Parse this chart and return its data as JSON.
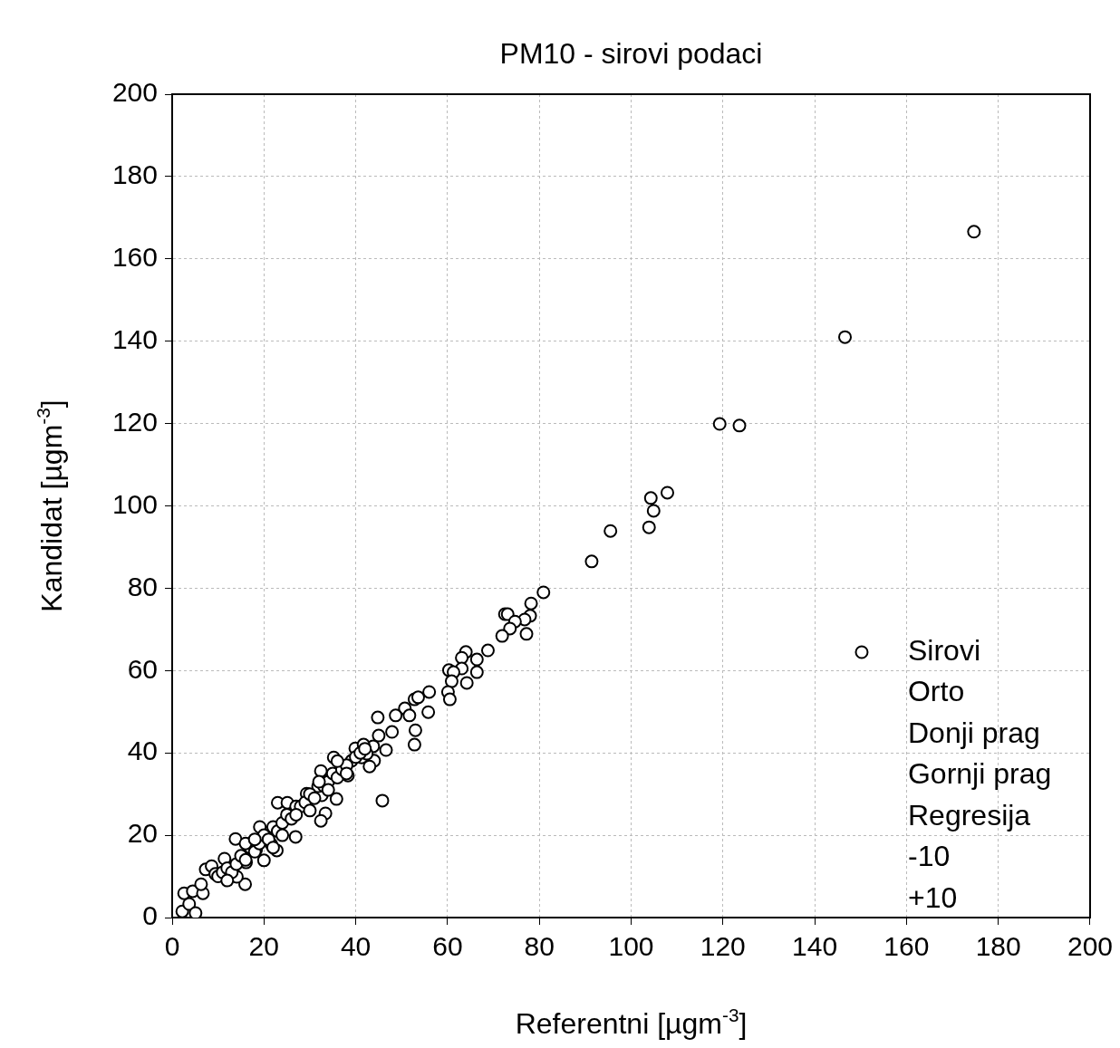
{
  "chart_data": {
    "type": "scatter",
    "title": "PM10 - sirovi podaci",
    "xlabel": "Referentni [µgm$^{-3}$]",
    "ylabel": "Kandidat [µgm$^{-3}$]",
    "xlim": [
      0,
      200
    ],
    "ylim": [
      0,
      200
    ],
    "xticks": [
      0,
      20,
      40,
      60,
      80,
      100,
      120,
      140,
      160,
      180,
      200
    ],
    "yticks": [
      0,
      20,
      40,
      60,
      80,
      100,
      120,
      140,
      160,
      180,
      200
    ],
    "grid": true,
    "legend": "bottom right",
    "marker": "circle",
    "annotations": [
      "Orto",
      "Donji prag",
      "Gornji prag",
      "Regresija",
      "-10",
      "+10"
    ],
    "series": [
      {
        "name": "Sirovi",
        "color": "#000000",
        "x": [
          174.7,
          146.6,
          119.3,
          123.6,
          107.9,
          104.3,
          104.9,
          103.9,
          95.5,
          91.4,
          80.9,
          78.2,
          72.5,
          73.1,
          78.0,
          76.8,
          74.7,
          73.6,
          77.2,
          71.9,
          68.8,
          64.0,
          63.1,
          66.4,
          60.3,
          63.1,
          61.3,
          66.4,
          60.9,
          64.2,
          60.1,
          60.5,
          56.0,
          52.8,
          53.6,
          50.7,
          55.8,
          51.7,
          48.7,
          53.0,
          52.8,
          44.8,
          47.9,
          45.0,
          43.8,
          46.6,
          44.0,
          45.8,
          2.2,
          3.7,
          5.1,
          2.6,
          4.5,
          6.7,
          6.3,
          7.3,
          8.6,
          9.4,
          11.4,
          13.8,
          15.9,
          14.1,
          16.1,
          18.3,
          19.1,
          20.0,
          21.6,
          23.0,
          22.8,
          25.1,
          26.9,
          29.3,
          32.6,
          31.8,
          32.4,
          35.8,
          33.4,
          32.4,
          35.2,
          38.3,
          39.1,
          39.9,
          41.3,
          42.4,
          41.7,
          43.0,
          10,
          11,
          12,
          13,
          14,
          15,
          16,
          17,
          18,
          19,
          20,
          21,
          22,
          23,
          24,
          25,
          26,
          27,
          28,
          29,
          30,
          31,
          33,
          34,
          35,
          36,
          37,
          38,
          40,
          41,
          42,
          12,
          16,
          18,
          22,
          24,
          27,
          30,
          32,
          34,
          36,
          38
        ],
        "values": [
          166.6,
          141.0,
          119.9,
          119.5,
          103.2,
          101.9,
          98.8,
          94.8,
          93.9,
          86.5,
          79.0,
          76.3,
          73.7,
          73.7,
          73.3,
          72.4,
          71.9,
          70.2,
          68.9,
          68.4,
          64.9,
          64.5,
          63.1,
          62.7,
          60.1,
          60.5,
          59.6,
          59.6,
          57.4,
          57.0,
          54.8,
          53.0,
          54.8,
          53.0,
          53.5,
          50.8,
          49.9,
          49.1,
          49.1,
          45.5,
          42.0,
          48.6,
          45.1,
          44.2,
          41.6,
          40.7,
          38.1,
          28.4,
          1.5,
          3.3,
          1.1,
          5.9,
          6.4,
          5.9,
          8.1,
          11.7,
          12.5,
          10.6,
          14.3,
          19.1,
          8.1,
          9.9,
          13.4,
          16.5,
          22.0,
          13.9,
          17.8,
          27.9,
          16.3,
          27.9,
          19.6,
          30.1,
          29.7,
          31.9,
          35.6,
          28.8,
          25.3,
          23.5,
          38.9,
          34.5,
          38.1,
          41.1,
          38.9,
          39.8,
          42.0,
          36.7,
          10,
          11,
          12,
          11,
          13,
          15,
          14,
          17,
          16,
          18,
          20,
          19,
          22,
          21,
          23,
          25,
          24,
          27,
          27,
          28,
          30,
          29,
          32,
          33,
          35,
          34,
          36,
          37,
          39,
          40,
          41,
          9,
          18,
          19,
          17,
          20,
          25,
          26,
          33,
          31,
          38,
          35
        ]
      }
    ]
  }
}
